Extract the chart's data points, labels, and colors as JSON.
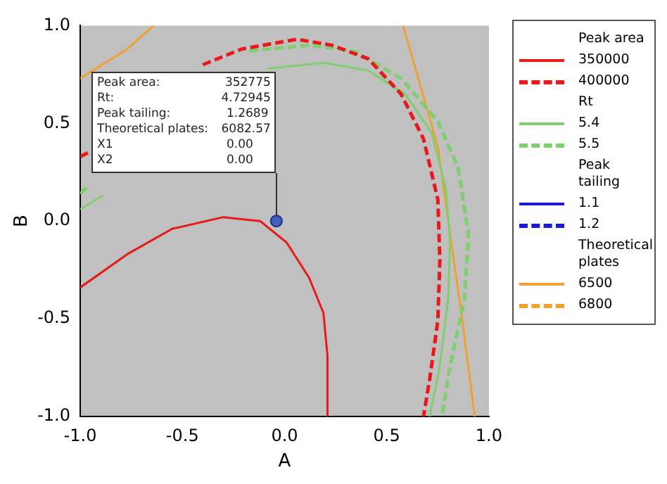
{
  "chart_data": {
    "type": "line",
    "xlabel": "A",
    "ylabel": "B",
    "xlim": [
      -1,
      1
    ],
    "ylim": [
      -1,
      1
    ],
    "xticks": [
      {
        "value": -1,
        "label": "-1.0"
      },
      {
        "value": -0.5,
        "label": "-0.5"
      },
      {
        "value": 0,
        "label": "0.0"
      },
      {
        "value": 0.5,
        "label": "0.5"
      },
      {
        "value": 1,
        "label": "1.0"
      }
    ],
    "yticks": [
      {
        "value": -1,
        "label": "-1.0"
      },
      {
        "value": -0.5,
        "label": "-0.5"
      },
      {
        "value": 0,
        "label": "0.0"
      },
      {
        "value": 0.5,
        "label": "0.5"
      },
      {
        "value": 1,
        "label": "1.0"
      }
    ],
    "legend": "right",
    "grid": false,
    "series": [
      {
        "name": "350000",
        "color": "#e8191a",
        "line_style": "solid",
        "x": [
          -1,
          -0.77,
          -0.55,
          -0.3,
          -0.12,
          0.01,
          0.12,
          0.19,
          0.21,
          0.21
        ],
        "values": [
          -0.34,
          -0.17,
          -0.04,
          0.02,
          0.0,
          -0.11,
          -0.29,
          -0.47,
          -0.69,
          -1.0
        ]
      },
      {
        "name": "400000",
        "color": "#e8191a",
        "line_style": "dashed",
        "x": [
          -0.4,
          -0.21,
          0.06,
          0.23,
          0.41,
          0.57,
          0.68,
          0.75,
          0.76,
          0.75,
          0.71,
          0.68
        ],
        "values": [
          0.8,
          0.88,
          0.93,
          0.9,
          0.83,
          0.65,
          0.42,
          0.11,
          -0.2,
          -0.51,
          -0.81,
          -1.0
        ]
      },
      {
        "name": "5.4",
        "color": "#7fce6f",
        "line_style": "solid",
        "x": [
          -0.08,
          0.19,
          0.41,
          0.59,
          0.72,
          0.79,
          0.81,
          0.8,
          0.76,
          0.71
        ],
        "values": [
          0.78,
          0.81,
          0.77,
          0.65,
          0.45,
          0.16,
          -0.11,
          -0.4,
          -0.74,
          -1.0
        ]
      },
      {
        "name": "5.5",
        "color": "#7fce6f",
        "line_style": "dashed",
        "x": [
          -0.17,
          0.12,
          0.34,
          0.57,
          0.75,
          0.85,
          0.9,
          0.88,
          0.81,
          0.77
        ],
        "values": [
          0.87,
          0.9,
          0.87,
          0.73,
          0.51,
          0.27,
          -0.07,
          -0.4,
          -0.74,
          -1.0
        ]
      },
      {
        "name": "1.1",
        "color": "#1a1ad0",
        "line_style": "solid"
      },
      {
        "name": "1.2",
        "color": "#1a1ad0",
        "line_style": "dashed"
      },
      {
        "name": "6500",
        "color": "#f0a030",
        "line_style": "solid",
        "x": [
          0.58,
          0.75,
          0.87,
          0.93
        ],
        "values": [
          1.0,
          0.38,
          -0.51,
          -1.0
        ]
      },
      {
        "name": "6800",
        "color": "#f0a030",
        "line_style": "dashed"
      },
      {
        "color": "#e8191a",
        "line_style": "dashed",
        "x": [
          -1,
          -0.96
        ],
        "values": [
          0.33,
          0.35
        ]
      },
      {
        "color": "#7fce6f",
        "line_style": "solid",
        "x": [
          -1,
          -0.89
        ],
        "values": [
          0.06,
          0.13
        ]
      },
      {
        "color": "#7fce6f",
        "line_style": "dashed",
        "x": [
          -1,
          -0.96
        ],
        "values": [
          0.14,
          0.18
        ]
      },
      {
        "color": "#f0a030",
        "line_style": "solid",
        "x": [
          -1,
          -0.77,
          -0.64
        ],
        "values": [
          0.73,
          0.88,
          1.0
        ]
      },
      {
        "type": "scatter",
        "color": "#4060c0",
        "marker": "circle",
        "x": [
          -0.04
        ],
        "values": [
          0.0
        ]
      }
    ],
    "annotations": [
      "Peak area",
      "Rt",
      "Peak tailing",
      "Theoretical plates",
      "Peak area:",
      "352775",
      "Rt:",
      "4.72945",
      "Peak tailing:",
      "1.2689",
      "Theoretical plates:",
      "6082.57",
      "X1",
      "0.00",
      "X2",
      "0.00"
    ]
  }
}
